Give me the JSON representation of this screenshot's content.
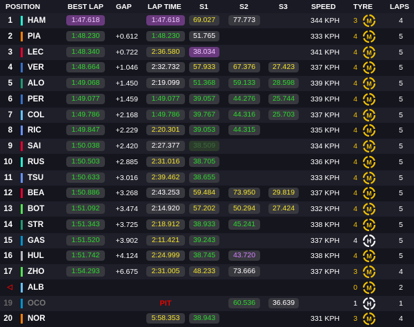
{
  "headers": {
    "position": "POSITION",
    "best_lap": "BEST LAP",
    "gap": "GAP",
    "lap_time": "LAP TIME",
    "s1": "S1",
    "s2": "S2",
    "s3": "S3",
    "speed": "SPEED",
    "tyre": "TYRE",
    "laps": "LAPS"
  },
  "colors": {
    "purple": "#d580ff",
    "green": "#2bd92b",
    "yellow": "#f2e32b",
    "red": "#e10600",
    "tyre_medium": "#f2c200",
    "tyre_hard": "#ffffff"
  },
  "rows": [
    {
      "pos": "1",
      "driver": "HAM",
      "team": "#27f4d2",
      "best_lap": "1:47.618",
      "best_color": "purple",
      "gap": "",
      "lap_time": "1:47.618",
      "lap_color": "purple",
      "s1": "69.027",
      "s1_color": "yellow",
      "s2": "77.773",
      "s2_color": "white",
      "s3": "",
      "s3_color": "",
      "speed": "344 KPH",
      "tyre_laps": "3",
      "tyre": "M",
      "laps": "4"
    },
    {
      "pos": "2",
      "driver": "PIA",
      "team": "#ff8000",
      "best_lap": "1:48.230",
      "best_color": "green",
      "gap": "+0.612",
      "lap_time": "1:48.230",
      "lap_color": "green",
      "s1": "51.765",
      "s1_color": "white",
      "s2": "",
      "s2_color": "",
      "s3": "",
      "s3_color": "",
      "speed": "333 KPH",
      "tyre_laps": "4",
      "tyre": "M",
      "laps": "5"
    },
    {
      "pos": "3",
      "driver": "LEC",
      "team": "#e8002d",
      "best_lap": "1:48.340",
      "best_color": "green",
      "gap": "+0.722",
      "lap_time": "2:36.580",
      "lap_color": "yellow",
      "s1": "38.034",
      "s1_color": "purple",
      "s2": "",
      "s2_color": "",
      "s3": "",
      "s3_color": "",
      "speed": "341 KPH",
      "tyre_laps": "4",
      "tyre": "M",
      "laps": "5"
    },
    {
      "pos": "4",
      "driver": "VER",
      "team": "#3671c6",
      "best_lap": "1:48.664",
      "best_color": "green",
      "gap": "+1.046",
      "lap_time": "2:32.732",
      "lap_color": "white",
      "s1": "57.933",
      "s1_color": "yellow",
      "s2": "67.376",
      "s2_color": "yellow",
      "s3": "27.423",
      "s3_color": "yellow",
      "speed": "337 KPH",
      "tyre_laps": "4",
      "tyre": "M",
      "laps": "5"
    },
    {
      "pos": "5",
      "driver": "ALO",
      "team": "#229971",
      "best_lap": "1:49.068",
      "best_color": "green",
      "gap": "+1.450",
      "lap_time": "2:19.099",
      "lap_color": "white",
      "s1": "51.368",
      "s1_color": "green",
      "s2": "59.133",
      "s2_color": "green",
      "s3": "28.598",
      "s3_color": "green",
      "speed": "339 KPH",
      "tyre_laps": "4",
      "tyre": "M",
      "laps": "5"
    },
    {
      "pos": "6",
      "driver": "PER",
      "team": "#3671c6",
      "best_lap": "1:49.077",
      "best_color": "green",
      "gap": "+1.459",
      "lap_time": "1:49.077",
      "lap_color": "green",
      "s1": "39.057",
      "s1_color": "green",
      "s2": "44.276",
      "s2_color": "green",
      "s3": "25.744",
      "s3_color": "green",
      "speed": "339 KPH",
      "tyre_laps": "4",
      "tyre": "M",
      "laps": "5"
    },
    {
      "pos": "7",
      "driver": "COL",
      "team": "#64c4ff",
      "best_lap": "1:49.786",
      "best_color": "green",
      "gap": "+2.168",
      "lap_time": "1:49.786",
      "lap_color": "green",
      "s1": "39.767",
      "s1_color": "green",
      "s2": "44.316",
      "s2_color": "green",
      "s3": "25.703",
      "s3_color": "green",
      "speed": "337 KPH",
      "tyre_laps": "4",
      "tyre": "M",
      "laps": "5"
    },
    {
      "pos": "8",
      "driver": "RIC",
      "team": "#6692ff",
      "best_lap": "1:49.847",
      "best_color": "green",
      "gap": "+2.229",
      "lap_time": "2:20.301",
      "lap_color": "yellow",
      "s1": "39.053",
      "s1_color": "green",
      "s2": "44.315",
      "s2_color": "green",
      "s3": "",
      "s3_color": "",
      "speed": "335 KPH",
      "tyre_laps": "4",
      "tyre": "M",
      "laps": "5"
    },
    {
      "pos": "9",
      "driver": "SAI",
      "team": "#e8002d",
      "best_lap": "1:50.038",
      "best_color": "green",
      "gap": "+2.420",
      "lap_time": "2:27.377",
      "lap_color": "white",
      "s1": "38.509",
      "s1_color": "faint",
      "s2": "",
      "s2_color": "",
      "s3": "",
      "s3_color": "",
      "speed": "334 KPH",
      "tyre_laps": "4",
      "tyre": "M",
      "laps": "5"
    },
    {
      "pos": "10",
      "driver": "RUS",
      "team": "#27f4d2",
      "best_lap": "1:50.503",
      "best_color": "green",
      "gap": "+2.885",
      "lap_time": "2:31.016",
      "lap_color": "yellow",
      "s1": "38.705",
      "s1_color": "green",
      "s2": "",
      "s2_color": "",
      "s3": "",
      "s3_color": "",
      "speed": "336 KPH",
      "tyre_laps": "4",
      "tyre": "M",
      "laps": "5"
    },
    {
      "pos": "11",
      "driver": "TSU",
      "team": "#6692ff",
      "best_lap": "1:50.633",
      "best_color": "green",
      "gap": "+3.016",
      "lap_time": "2:39.462",
      "lap_color": "yellow",
      "s1": "38.655",
      "s1_color": "green",
      "s2": "",
      "s2_color": "",
      "s3": "",
      "s3_color": "",
      "speed": "333 KPH",
      "tyre_laps": "4",
      "tyre": "M",
      "laps": "5"
    },
    {
      "pos": "12",
      "driver": "BEA",
      "team": "#e8002d",
      "best_lap": "1:50.886",
      "best_color": "green",
      "gap": "+3.268",
      "lap_time": "2:43.253",
      "lap_color": "white",
      "s1": "59.484",
      "s1_color": "yellow",
      "s2": "73.950",
      "s2_color": "yellow",
      "s3": "29.819",
      "s3_color": "yellow",
      "speed": "337 KPH",
      "tyre_laps": "4",
      "tyre": "M",
      "laps": "5"
    },
    {
      "pos": "13",
      "driver": "BOT",
      "team": "#52e252",
      "best_lap": "1:51.092",
      "best_color": "green",
      "gap": "+3.474",
      "lap_time": "2:14.920",
      "lap_color": "white",
      "s1": "57.202",
      "s1_color": "yellow",
      "s2": "50.294",
      "s2_color": "yellow",
      "s3": "27.424",
      "s3_color": "yellow",
      "speed": "332 KPH",
      "tyre_laps": "4",
      "tyre": "M",
      "laps": "5"
    },
    {
      "pos": "14",
      "driver": "STR",
      "team": "#229971",
      "best_lap": "1:51.343",
      "best_color": "green",
      "gap": "+3.725",
      "lap_time": "2:18.912",
      "lap_color": "yellow",
      "s1": "38.933",
      "s1_color": "green",
      "s2": "45.241",
      "s2_color": "green",
      "s3": "",
      "s3_color": "",
      "speed": "338 KPH",
      "tyre_laps": "4",
      "tyre": "M",
      "laps": "5"
    },
    {
      "pos": "15",
      "driver": "GAS",
      "team": "#0093cc",
      "best_lap": "1:51.520",
      "best_color": "green",
      "gap": "+3.902",
      "lap_time": "2:11.421",
      "lap_color": "yellow",
      "s1": "39.243",
      "s1_color": "green",
      "s2": "",
      "s2_color": "",
      "s3": "",
      "s3_color": "",
      "speed": "337 KPH",
      "tyre_laps": "4",
      "tyre": "H",
      "laps": "5"
    },
    {
      "pos": "16",
      "driver": "HUL",
      "team": "#b6babd",
      "best_lap": "1:51.742",
      "best_color": "green",
      "gap": "+4.124",
      "lap_time": "2:24.999",
      "lap_color": "yellow",
      "s1": "38.745",
      "s1_color": "green",
      "s2": "43.720",
      "s2_color": "purple",
      "s3": "",
      "s3_color": "",
      "speed": "338 KPH",
      "tyre_laps": "4",
      "tyre": "M",
      "laps": "5"
    },
    {
      "pos": "17",
      "driver": "ZHO",
      "team": "#52e252",
      "best_lap": "1:54.293",
      "best_color": "green",
      "gap": "+6.675",
      "lap_time": "2:31.005",
      "lap_color": "yellow",
      "s1": "48.233",
      "s1_color": "yellow",
      "s2": "73.666",
      "s2_color": "white",
      "s3": "",
      "s3_color": "",
      "speed": "337 KPH",
      "tyre_laps": "3",
      "tyre": "M",
      "laps": "4"
    },
    {
      "pos": "◁",
      "driver": "ALB",
      "team": "#64c4ff",
      "best_lap": "",
      "best_color": "",
      "gap": "",
      "lap_time": "",
      "lap_color": "",
      "s1": "",
      "s1_color": "",
      "s2": "",
      "s2_color": "",
      "s3": "",
      "s3_color": "",
      "speed": "",
      "tyre_laps": "0",
      "tyre": "M",
      "laps": "2",
      "pos_style": "warn"
    },
    {
      "pos": "19",
      "driver": "OCO",
      "team": "#0093cc",
      "best_lap": "",
      "best_color": "",
      "gap": "",
      "lap_time": "",
      "lap_color": "",
      "pit": "PIT",
      "s1": "",
      "s1_color": "",
      "s2": "60.536",
      "s2_color": "green",
      "s3": "36.639",
      "s3_color": "white",
      "speed": "",
      "tyre_laps": "1",
      "tyre": "H",
      "laps": "1",
      "pos_style": "dim"
    },
    {
      "pos": "20",
      "driver": "NOR",
      "team": "#ff8000",
      "best_lap": "",
      "best_color": "",
      "gap": "",
      "lap_time": "5:58.353",
      "lap_color": "yellow",
      "s1": "38.943",
      "s1_color": "green",
      "s2": "",
      "s2_color": "",
      "s3": "",
      "s3_color": "",
      "speed": "331 KPH",
      "tyre_laps": "3",
      "tyre": "M",
      "laps": "4"
    }
  ]
}
